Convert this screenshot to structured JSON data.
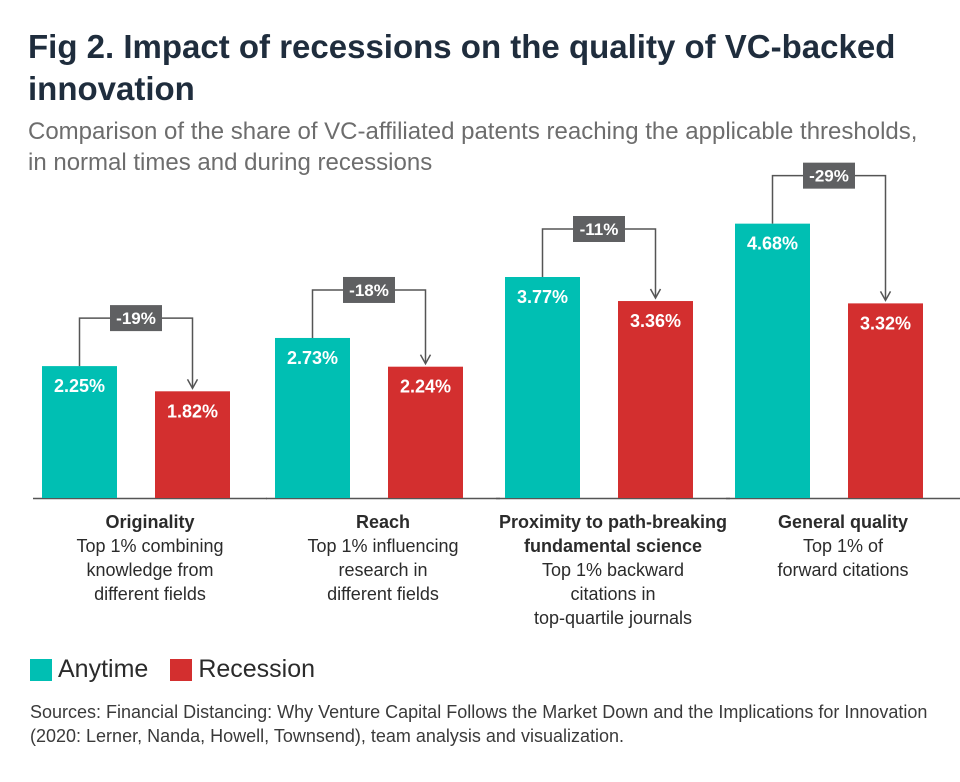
{
  "title": "Fig 2. Impact of recessions on the quality of VC-backed innovation",
  "subtitle": "Comparison of the share of VC-affiliated patents reaching the applicable thresholds, in normal times and during recessions",
  "colors": {
    "anytime": "#00bfb3",
    "recession": "#d32f2f",
    "change_box": "#5f6062",
    "axis": "#555555",
    "arrow": "#555555"
  },
  "legend": [
    {
      "label": "Anytime",
      "color": "#00bfb3"
    },
    {
      "label": "Recession",
      "color": "#d32f2f"
    }
  ],
  "source": "Sources: Financial Distancing: Why Venture Capital Follows the Market Down and the Implications for Innovation (2020: Lerner, Nanda, Howell, Townsend), team analysis and visualization.",
  "chart_data": {
    "type": "bar",
    "categories": [
      "Originality",
      "Reach",
      "Proximity to path-breaking fundamental science",
      "General quality"
    ],
    "category_names": [
      [
        "Originality"
      ],
      [
        "Reach"
      ],
      [
        "Proximity to path-breaking",
        "fundamental science"
      ],
      [
        "General quality"
      ]
    ],
    "category_descriptions": [
      [
        "Top 1% combining",
        "knowledge from",
        "different fields"
      ],
      [
        "Top 1% influencing",
        "research in",
        "different fields"
      ],
      [
        "Top 1% backward",
        "citations in",
        "top-quartile journals"
      ],
      [
        "Top 1% of",
        "forward citations"
      ]
    ],
    "series": [
      {
        "name": "Anytime",
        "values": [
          2.25,
          2.73,
          3.77,
          4.68
        ],
        "labels": [
          "2.25%",
          "2.73%",
          "3.77%",
          "4.68%"
        ]
      },
      {
        "name": "Recession",
        "values": [
          1.82,
          2.24,
          3.36,
          3.32
        ],
        "labels": [
          "1.82%",
          "2.24%",
          "3.36%",
          "3.32%"
        ]
      }
    ],
    "change_labels": [
      "-19%",
      "-18%",
      "-11%",
      "-29%"
    ],
    "ylim": [
      0,
      5.5
    ],
    "grid": false,
    "legend_position": "bottom-left"
  }
}
